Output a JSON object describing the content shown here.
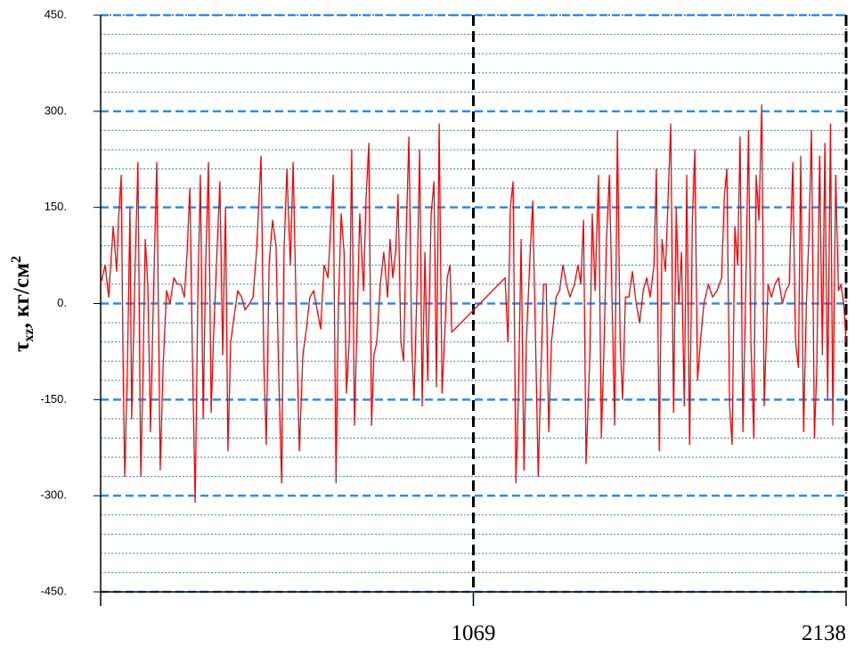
{
  "chart_data": {
    "type": "line",
    "ylabel": {
      "symbol": "τ",
      "subscript": "xz",
      "unit": ", кг/см",
      "superscript": "2"
    },
    "xlim": [
      0,
      2138
    ],
    "xticks": [
      1069,
      2138
    ],
    "ylim": [
      -450,
      450
    ],
    "yticks": [
      {
        "value": 450,
        "label": "450."
      },
      {
        "value": 300,
        "label": "300."
      },
      {
        "value": 150,
        "label": "150."
      },
      {
        "value": 0,
        "label": "0."
      },
      {
        "value": -150,
        "label": "-150."
      },
      {
        "value": -300,
        "label": "-300."
      },
      {
        "value": -450,
        "label": "-450."
      }
    ],
    "grid": true,
    "minor_grid": true,
    "xgrid": true,
    "grid_color": "#1e90ff",
    "series": [
      {
        "color": "#ff0000",
        "x": [
          0,
          13,
          23,
          36,
          46,
          51,
          59,
          64,
          69,
          77,
          84,
          89,
          100,
          107,
          115,
          120,
          128,
          135,
          143,
          151,
          161,
          171,
          179,
          189,
          199,
          210,
          220,
          230,
          240,
          248,
          256,
          263,
          271,
          279,
          286,
          294,
          301,
          309,
          317,
          324,
          332,
          342,
          350,
          358,
          365,
          373,
          383,
          393,
          404,
          414,
          427,
          437,
          447,
          460,
          468,
          475,
          483,
          493,
          503,
          511,
          519,
          526,
          534,
          544,
          552,
          562,
          570,
          580,
          590,
          600,
          611,
          621,
          631,
          641,
          652,
          659,
          667,
          675,
          682,
          690,
          698,
          705,
          713,
          720,
          728,
          736,
          743,
          754,
          761,
          769,
          777,
          784,
          792,
          802,
          812,
          823,
          830,
          838,
          846,
          853,
          861,
          869,
          876,
          884,
          892,
          899,
          907,
          915,
          922,
          930,
          938,
          948,
          956,
          963,
          971,
          979,
          986,
          994,
          1002,
          1007,
          1160,
          1168,
          1175,
          1183,
          1191,
          1198,
          1206,
          1214,
          1221,
          1232,
          1239,
          1247,
          1255,
          1262,
          1270,
          1278,
          1285,
          1293,
          1306,
          1316,
          1326,
          1336,
          1346,
          1359,
          1369,
          1377,
          1385,
          1392,
          1403,
          1410,
          1418,
          1428,
          1436,
          1444,
          1451,
          1459,
          1467,
          1474,
          1482,
          1490,
          1497,
          1505,
          1515,
          1525,
          1536,
          1546,
          1556,
          1566,
          1576,
          1587,
          1594,
          1602,
          1610,
          1620,
          1628,
          1635,
          1643,
          1651,
          1658,
          1666,
          1674,
          1681,
          1689,
          1697,
          1704,
          1712,
          1720,
          1730,
          1743,
          1755,
          1768,
          1781,
          1789,
          1796,
          1804,
          1811,
          1819,
          1827,
          1834,
          1842,
          1850,
          1858,
          1865,
          1873,
          1880,
          1888,
          1896,
          1903,
          1914,
          1924,
          1934,
          1944,
          1955,
          1965,
          1975,
          1985,
          1993,
          2001,
          2008,
          2016,
          2024,
          2031,
          2039,
          2047,
          2054,
          2062,
          2070,
          2077,
          2085,
          2093,
          2100,
          2108,
          2116,
          2123,
          2131,
          2138
        ],
        "values": [
          30,
          60,
          10,
          120,
          50,
          130,
          200,
          -80,
          -270,
          -100,
          150,
          -180,
          80,
          220,
          -270,
          -150,
          100,
          30,
          -200,
          0,
          220,
          -260,
          -100,
          20,
          0,
          40,
          30,
          30,
          10,
          80,
          180,
          -80,
          -310,
          20,
          200,
          -180,
          50,
          220,
          -170,
          -50,
          60,
          190,
          -80,
          150,
          -230,
          -60,
          -20,
          20,
          10,
          -10,
          0,
          10,
          80,
          230,
          -90,
          -220,
          60,
          130,
          90,
          -120,
          -280,
          80,
          210,
          60,
          220,
          -40,
          -230,
          -80,
          -40,
          10,
          20,
          -10,
          -40,
          60,
          40,
          110,
          200,
          -280,
          0,
          140,
          80,
          -140,
          -60,
          240,
          -190,
          -20,
          140,
          20,
          160,
          250,
          -190,
          -80,
          -60,
          30,
          80,
          10,
          100,
          40,
          80,
          170,
          -60,
          -90,
          100,
          260,
          -60,
          -150,
          20,
          240,
          -160,
          80,
          -120,
          140,
          190,
          -130,
          280,
          -140,
          -60,
          40,
          60,
          -45,
          40,
          -60,
          150,
          190,
          -280,
          -150,
          100,
          -260,
          -60,
          80,
          160,
          -50,
          -270,
          -120,
          30,
          30,
          -200,
          -60,
          10,
          20,
          60,
          30,
          10,
          30,
          60,
          30,
          130,
          -250,
          -80,
          140,
          20,
          200,
          -210,
          -60,
          100,
          200,
          0,
          -190,
          270,
          -60,
          -150,
          10,
          10,
          50,
          0,
          -30,
          20,
          40,
          10,
          60,
          210,
          -230,
          100,
          50,
          170,
          280,
          -170,
          150,
          0,
          80,
          -160,
          200,
          -220,
          130,
          240,
          -120,
          -60,
          0,
          30,
          10,
          20,
          40,
          170,
          210,
          -160,
          -220,
          120,
          60,
          260,
          -200,
          20,
          270,
          -60,
          -210,
          200,
          130,
          310,
          -160,
          30,
          10,
          30,
          40,
          0,
          20,
          30,
          220,
          -60,
          -100,
          230,
          -200,
          0,
          100,
          270,
          -210,
          -100,
          230,
          -80,
          250,
          -150,
          280,
          -190,
          200,
          20,
          30,
          0,
          -60
        ]
      }
    ]
  }
}
